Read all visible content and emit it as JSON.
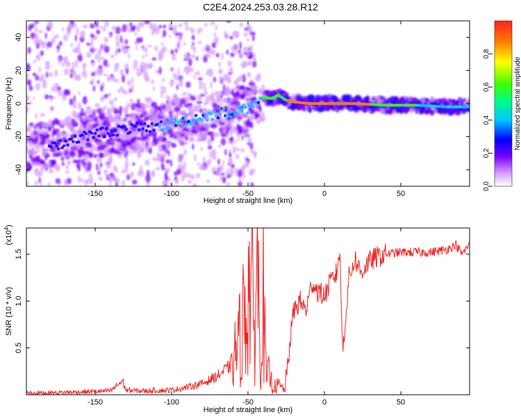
{
  "figure": {
    "title": "C2E4.2024.253.03.28.R12"
  },
  "chart_data": [
    {
      "type": "heatmap",
      "title": "C2E4.2024.253.03.28.R12",
      "xlabel": "Height of straight line (km)",
      "ylabel": "Frequency (Hz)",
      "xlim": [
        -195,
        95
      ],
      "ylim": [
        -50,
        50
      ],
      "xticks": [
        -150,
        -100,
        -50,
        0,
        50
      ],
      "yticks": [
        -40,
        -20,
        0,
        20,
        40
      ],
      "colorbar": {
        "label": "Normalized spectral amplitude",
        "range": [
          0,
          1
        ],
        "ticks": [
          "0.0",
          "0.2",
          "0.4",
          "0.6",
          "0.8"
        ],
        "colormap": "rainbow (white-violet-blue-cyan-green-yellow-red)"
      },
      "ridge": {
        "description": "peak frequency track",
        "x": [
          -175,
          -150,
          -125,
          -110,
          -100,
          -90,
          -80,
          -70,
          -60,
          -50,
          -45,
          -40,
          -35,
          -30,
          -25,
          -20,
          -10,
          0,
          10,
          20,
          40,
          60,
          80,
          95
        ],
        "y": [
          -25,
          -18,
          -15,
          -14,
          -12,
          -10,
          -8,
          -6,
          -5,
          -3,
          2,
          4,
          3,
          5,
          2,
          1,
          0,
          0,
          0,
          0,
          -1,
          -1,
          -2,
          -2
        ]
      }
    },
    {
      "type": "line",
      "xlabel": "Height of straight line (km)",
      "ylabel": "SNR (10 * v/v)",
      "y_multiplier": "(x10",
      "y_multiplier_exp": "4",
      "y_multiplier_close": ")",
      "xlim": [
        -195,
        95
      ],
      "ylim": [
        0,
        1.78
      ],
      "xticks": [
        -150,
        -100,
        -50,
        0,
        50
      ],
      "yticks": [
        "0.5",
        "1.0",
        "1.5"
      ],
      "color": "#ee2222",
      "series": [
        {
          "x": [
            -195,
            -180,
            -160,
            -140,
            -132,
            -130,
            -120,
            -100,
            -90,
            -80,
            -70,
            -62,
            -56,
            -52,
            -48,
            -46,
            -44,
            -42,
            -40,
            -38,
            -36,
            -34,
            -30,
            -26,
            -24,
            -22,
            -20,
            -16,
            -12,
            -8,
            -4,
            0,
            4,
            8,
            10,
            12,
            16,
            20,
            24,
            28,
            32,
            40,
            50,
            60,
            70,
            80,
            86,
            90,
            95
          ],
          "y": [
            0.02,
            0.02,
            0.03,
            0.04,
            0.15,
            0.05,
            0.04,
            0.05,
            0.08,
            0.12,
            0.2,
            0.3,
            0.55,
            0.9,
            1.28,
            0.6,
            1.5,
            0.4,
            1.1,
            0.15,
            0.25,
            0.08,
            0.1,
            0.05,
            0.3,
            0.65,
            0.9,
            1.0,
            0.9,
            1.2,
            1.1,
            1.05,
            1.2,
            1.3,
            1.55,
            0.45,
            1.25,
            1.45,
            1.3,
            1.4,
            1.45,
            1.5,
            1.52,
            1.52,
            1.52,
            1.55,
            1.6,
            1.5,
            1.6
          ]
        }
      ]
    }
  ]
}
